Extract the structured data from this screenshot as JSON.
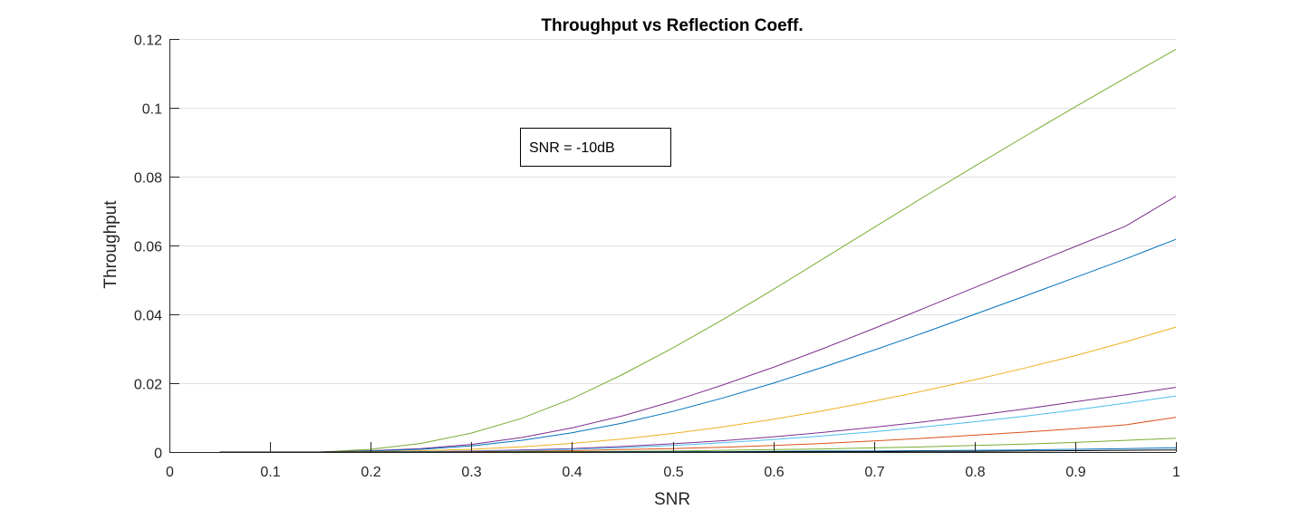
{
  "chart_data": {
    "type": "line",
    "title": "Throughput vs Reflection Coeff.",
    "xlabel": "SNR",
    "ylabel": "Throughput",
    "xlim": [
      0,
      1
    ],
    "ylim": [
      0,
      0.12
    ],
    "grid": "y-major",
    "xticks": [
      0,
      0.1,
      0.2,
      0.3,
      0.4,
      0.5,
      0.6,
      0.7,
      0.8,
      0.9,
      1
    ],
    "xtick_labels": [
      "0",
      "0.1",
      "0.2",
      "0.3",
      "0.4",
      "0.5",
      "0.6",
      "0.7",
      "0.8",
      "0.9",
      "1"
    ],
    "yticks": [
      0,
      0.02,
      0.04,
      0.06,
      0.08,
      0.1,
      0.12
    ],
    "ytick_labels": [
      "0",
      "0.02",
      "0.04",
      "0.06",
      "0.08",
      "0.1",
      "0.12"
    ],
    "annotation": "SNR = -10dB",
    "x": [
      0.05,
      0.1,
      0.15,
      0.2,
      0.25,
      0.3,
      0.35,
      0.4,
      0.45,
      0.5,
      0.55,
      0.6,
      0.65,
      0.7,
      0.75,
      0.8,
      0.85,
      0.9,
      0.95,
      1.0
    ],
    "series": [
      {
        "color": "#77AC30",
        "values": [
          0,
          0,
          0,
          0.0008,
          0.0025,
          0.0055,
          0.0098,
          0.0155,
          0.0225,
          0.0302,
          0.0385,
          0.0472,
          0.0562,
          0.0652,
          0.0742,
          0.083,
          0.0917,
          0.1003,
          0.1087,
          0.117
        ]
      },
      {
        "color": "#7E2F8E",
        "values": [
          0,
          0,
          0,
          0.0004,
          0.001,
          0.0022,
          0.0042,
          0.007,
          0.0105,
          0.0147,
          0.0195,
          0.0246,
          0.0301,
          0.0359,
          0.0418,
          0.0478,
          0.0538,
          0.0597,
          0.0656,
          0.0743
        ]
      },
      {
        "color": "#0072BD",
        "values": [
          0,
          0,
          0,
          0.0003,
          0.0008,
          0.0018,
          0.0034,
          0.0056,
          0.0084,
          0.0118,
          0.0157,
          0.02,
          0.0247,
          0.0296,
          0.0347,
          0.04,
          0.0453,
          0.0507,
          0.0561,
          0.0618
        ]
      },
      {
        "color": "#EDB120",
        "values": [
          0,
          0,
          0,
          0.0001,
          0.0004,
          0.0008,
          0.0015,
          0.0025,
          0.0038,
          0.0054,
          0.0073,
          0.0095,
          0.012,
          0.0148,
          0.0178,
          0.021,
          0.0244,
          0.028,
          0.032,
          0.0363
        ]
      },
      {
        "color": "#7E2F8E",
        "values": [
          0,
          0,
          0,
          0,
          0.0001,
          0.0003,
          0.0006,
          0.001,
          0.0016,
          0.0024,
          0.0033,
          0.0044,
          0.0057,
          0.0072,
          0.0088,
          0.0106,
          0.0125,
          0.0146,
          0.0166,
          0.0188
        ]
      },
      {
        "color": "#4DBEEE",
        "values": [
          0,
          0,
          0,
          0,
          0.0001,
          0.0002,
          0.0004,
          0.0008,
          0.0013,
          0.0019,
          0.0027,
          0.0036,
          0.0047,
          0.0059,
          0.0073,
          0.0088,
          0.0104,
          0.0122,
          0.0142,
          0.0163
        ]
      },
      {
        "color": "#D95319",
        "values": [
          0,
          0,
          0,
          0,
          0,
          0.0001,
          0.0002,
          0.0004,
          0.0007,
          0.001,
          0.0014,
          0.0019,
          0.0025,
          0.0032,
          0.004,
          0.0049,
          0.0058,
          0.0068,
          0.0079,
          0.0101
        ]
      },
      {
        "color": "#77AC30",
        "values": [
          0,
          0,
          0,
          0,
          0,
          0,
          0.0001,
          0.0001,
          0.0002,
          0.0003,
          0.0005,
          0.0007,
          0.0009,
          0.0012,
          0.0015,
          0.0019,
          0.0023,
          0.0028,
          0.0034,
          0.004
        ]
      },
      {
        "color": "#0072BD",
        "values": [
          0,
          0,
          0,
          0,
          0,
          0,
          0,
          0,
          0.0001,
          0.0001,
          0.0001,
          0.0002,
          0.0003,
          0.0003,
          0.0004,
          0.0005,
          0.0006,
          0.0008,
          0.001,
          0.0012
        ]
      },
      {
        "color": "#000000",
        "values": [
          0,
          0,
          0,
          0,
          0,
          0,
          0,
          0,
          0,
          0,
          0,
          0.0001,
          0.0001,
          0.0001,
          0.0002,
          0.0002,
          0.0003,
          0.0004,
          0.0005,
          0.0006
        ]
      }
    ]
  }
}
